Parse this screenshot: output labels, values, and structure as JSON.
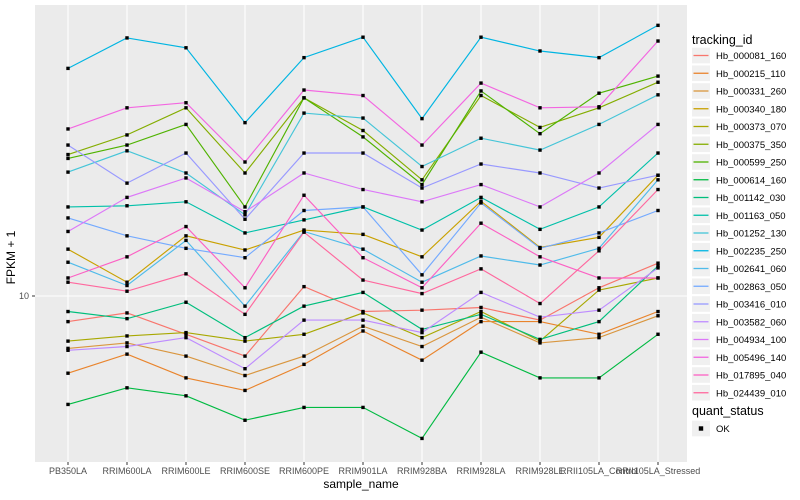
{
  "figure": {
    "background": "#FFFFFF",
    "panel_color": "#EBEBEB",
    "grid_color": "#FFFFFF",
    "legend_key_color": "#F0F0F0",
    "point_color": "#000000",
    "axis_text_color": "#4D4D4D",
    "axis_title_color": "#000000",
    "tick_mark_color": "#333333"
  },
  "axes": {
    "x_title": "sample_name",
    "y_title": "FPKM + 1",
    "y_tick_label": "10"
  },
  "legend": {
    "tracking_title": "tracking_id",
    "quant_title": "quant_status",
    "quant_items": [
      {
        "label": "OK",
        "marker": "black-square"
      }
    ]
  },
  "chart_data": {
    "type": "line",
    "title": "",
    "xlabel": "sample_name",
    "ylabel": "FPKM + 1",
    "y_scale": "log10",
    "y_ticks_labeled": [
      10
    ],
    "ylim": [
      2.8,
      95
    ],
    "grid": "major-on",
    "legend_position": "right",
    "marker": "small black square (quant_status OK)",
    "categories": [
      "PB350LA",
      "RRIM600LA",
      "RRIM600LE",
      "RRIM600SE",
      "RRIM600PE",
      "RRIM901LA",
      "RRIM928BA",
      "RRIM928LA",
      "RRIM928LE",
      "RRII105LA_Control",
      "RRII105LA_Stressed"
    ],
    "series": [
      {
        "name": "Hb_000081_160",
        "color": "#F8766D",
        "values": [
          8.1,
          8.7,
          7.3,
          6.1,
          10.8,
          8.8,
          8.9,
          9.1,
          8.2,
          10.7,
          13.1
        ]
      },
      {
        "name": "Hb_000215_110",
        "color": "#E9842C",
        "values": [
          5.3,
          6.2,
          5.1,
          4.6,
          5.7,
          7.5,
          5.9,
          8.1,
          8.1,
          7.3,
          8.8
        ]
      },
      {
        "name": "Hb_000331_260",
        "color": "#D9963F",
        "values": [
          6.5,
          6.8,
          6.1,
          5.2,
          6.1,
          7.8,
          6.6,
          8.4,
          6.8,
          7.1,
          8.5
        ]
      },
      {
        "name": "Hb_000340_180",
        "color": "#C9A100",
        "values": [
          14.7,
          11.2,
          16.4,
          14.6,
          17.2,
          16.6,
          13.8,
          21.8,
          14.9,
          16.2,
          27.0
        ]
      },
      {
        "name": "Hb_000373_070",
        "color": "#A8A800",
        "values": [
          6.9,
          7.2,
          7.4,
          6.9,
          7.3,
          8.7,
          7.1,
          8.8,
          6.9,
          10.5,
          11.6
        ]
      },
      {
        "name": "Hb_000375_350",
        "color": "#84AD00",
        "values": [
          32.0,
          37.6,
          47.0,
          27.5,
          51.0,
          39.0,
          26.0,
          52.0,
          40.0,
          47.0,
          58.0
        ]
      },
      {
        "name": "Hb_000599_250",
        "color": "#4FB300",
        "values": [
          31.0,
          34.6,
          41.0,
          20.8,
          51.0,
          37.0,
          25.0,
          54.0,
          38.0,
          53.0,
          61.0
        ]
      },
      {
        "name": "Hb_000614_160",
        "color": "#00BA42",
        "values": [
          4.1,
          4.7,
          4.4,
          3.6,
          4.0,
          4.0,
          3.1,
          6.3,
          5.1,
          5.1,
          7.3
        ]
      },
      {
        "name": "Hb_001142_030",
        "color": "#00BE7C",
        "values": [
          8.8,
          8.3,
          9.5,
          7.1,
          9.2,
          10.3,
          7.6,
          8.6,
          7.0,
          8.1,
          12.8
        ]
      },
      {
        "name": "Hb_001163_050",
        "color": "#00C0A9",
        "values": [
          20.8,
          21.0,
          21.7,
          16.8,
          18.7,
          20.8,
          17.2,
          22.5,
          17.3,
          20.8,
          32.4
        ]
      },
      {
        "name": "Hb_001252_130",
        "color": "#45C5D8",
        "values": [
          27.7,
          33.0,
          27.5,
          19.5,
          45.0,
          43.2,
          29.0,
          36.6,
          33.2,
          41.0,
          52.3
        ]
      },
      {
        "name": "Hb_002235_250",
        "color": "#00B5E2",
        "values": [
          65.0,
          83.5,
          77.0,
          41.6,
          71.0,
          84.0,
          43.0,
          84.0,
          75.0,
          71.0,
          92.6
        ]
      },
      {
        "name": "Hb_002641_060",
        "color": "#4FBBEA",
        "values": [
          13.2,
          10.9,
          15.8,
          9.2,
          17.0,
          14.7,
          11.2,
          13.9,
          12.9,
          14.8,
          26.0
        ]
      },
      {
        "name": "Hb_002863_050",
        "color": "#74AAFF",
        "values": [
          19.0,
          16.4,
          14.8,
          13.7,
          20.2,
          20.8,
          11.9,
          21.5,
          14.8,
          16.8,
          20.2
        ]
      },
      {
        "name": "Hb_003416_010",
        "color": "#9899FF",
        "values": [
          34.6,
          25.3,
          32.4,
          18.8,
          32.4,
          32.4,
          24.3,
          29.6,
          27.5,
          24.3,
          27.0
        ]
      },
      {
        "name": "Hb_003582_060",
        "color": "#BE8CFF",
        "values": [
          6.4,
          6.6,
          7.1,
          5.5,
          8.2,
          8.2,
          7.4,
          10.3,
          8.4,
          8.9,
          12.6
        ]
      },
      {
        "name": "Hb_004934_100",
        "color": "#DC78F8",
        "values": [
          17.0,
          22.5,
          26.4,
          20.0,
          27.5,
          24.0,
          21.7,
          25.0,
          20.8,
          27.5,
          41.0
        ]
      },
      {
        "name": "Hb_005496_140",
        "color": "#F366E1",
        "values": [
          39.5,
          47.0,
          49.0,
          30.1,
          54.4,
          52.0,
          34.6,
          57.6,
          47.0,
          47.4,
          81.4
        ]
      },
      {
        "name": "Hb_017895_040",
        "color": "#FC61C4",
        "values": [
          11.6,
          13.8,
          17.7,
          10.7,
          22.9,
          13.7,
          10.7,
          18.2,
          13.8,
          11.6,
          11.6
        ]
      },
      {
        "name": "Hb_024439_010",
        "color": "#FF689E",
        "values": [
          11.2,
          10.4,
          12.0,
          8.6,
          16.9,
          11.4,
          10.2,
          12.5,
          9.4,
          14.5,
          24.0
        ]
      }
    ]
  }
}
